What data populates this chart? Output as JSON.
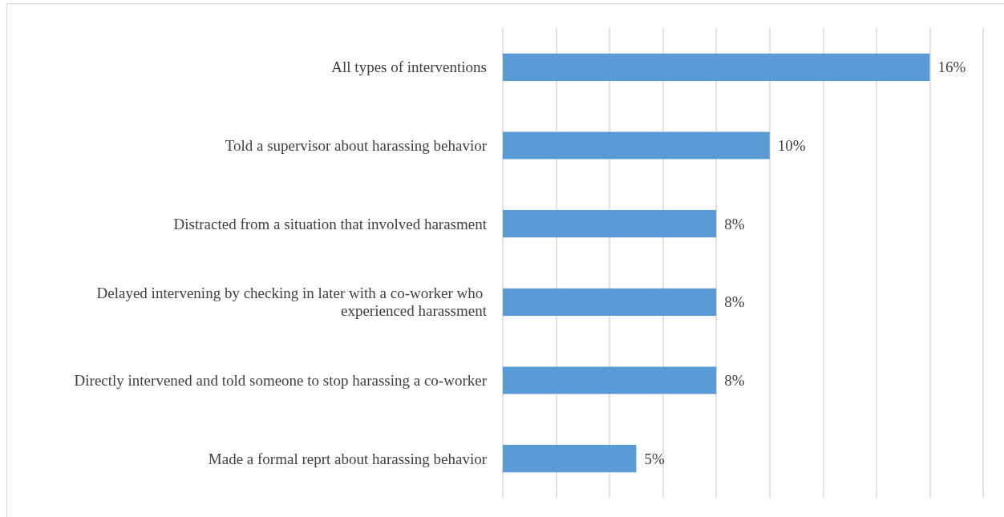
{
  "chart_data": {
    "type": "bar",
    "orientation": "horizontal",
    "categories": [
      "All types of interventions",
      "Told a supervisor about harassing behavior",
      "Distracted from a situation that involved harasment",
      "Delayed intervening by checking in later with a co-worker who experienced harassment",
      "Directly intervened and told someone to stop harassing a co-worker",
      "Made a formal reprt about harassing behavior"
    ],
    "values": [
      16,
      10,
      8,
      8,
      8,
      5
    ],
    "value_labels": [
      "16%",
      "10%",
      "8%",
      "8%",
      "8%",
      "5%"
    ],
    "color": "#5b9bd5",
    "xlim": [
      0,
      18
    ],
    "xticks": [
      {
        "value": 0,
        "label": null
      },
      {
        "value": 2,
        "label": null
      },
      {
        "value": 4,
        "label": null
      },
      {
        "value": 6,
        "label": null
      },
      {
        "value": 8,
        "label": null
      },
      {
        "value": 10,
        "label": null
      },
      {
        "value": 12,
        "label": null
      },
      {
        "value": 14,
        "label": null
      },
      {
        "value": 16,
        "label": null
      },
      {
        "value": 18,
        "label": null
      }
    ],
    "grid": "x",
    "tick_labels": "y"
  }
}
